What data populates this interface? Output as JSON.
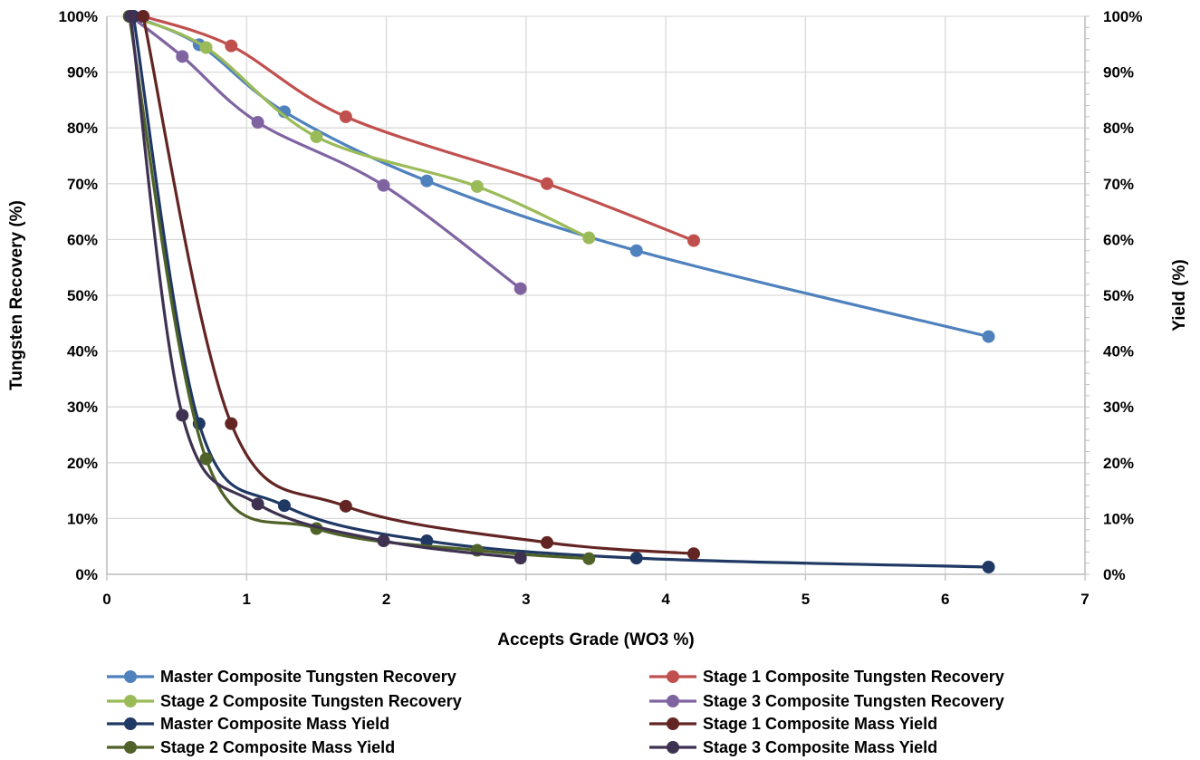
{
  "chart_data": {
    "type": "scatter",
    "title": "",
    "xlabel": "Accepts Grade (WO3 %)",
    "ylabel": "Tungsten Recovery (%)",
    "y2label": "Yield (%)",
    "xlim": [
      0,
      7
    ],
    "ylim": [
      0,
      100
    ],
    "y2lim": [
      0,
      100
    ],
    "x_ticks": [
      "0",
      "1",
      "2",
      "3",
      "4",
      "5",
      "6",
      "7"
    ],
    "y_ticks": [
      "0%",
      "10%",
      "20%",
      "30%",
      "40%",
      "50%",
      "60%",
      "70%",
      "80%",
      "90%",
      "100%"
    ],
    "y2_ticks": [
      "0%",
      "10%",
      "20%",
      "30%",
      "40%",
      "50%",
      "60%",
      "70%",
      "80%",
      "90%",
      "100%"
    ],
    "grid": true,
    "legend_position": "bottom",
    "series": [
      {
        "name": "Master Composite Tungsten Recovery",
        "color": "#4f81bd",
        "x": [
          0.19,
          0.66,
          1.27,
          2.29,
          3.79,
          6.31
        ],
        "y": [
          100,
          94.9,
          82.9,
          70.5,
          58.0,
          42.6
        ]
      },
      {
        "name": "Stage 1 Composite Tungsten Recovery",
        "color": "#c0504d",
        "x": [
          0.26,
          0.89,
          1.71,
          3.15,
          4.2
        ],
        "y": [
          100,
          94.7,
          82.0,
          70.0,
          59.8
        ]
      },
      {
        "name": "Stage 2 Composite Tungsten Recovery",
        "color": "#9bbb59",
        "x": [
          0.16,
          0.71,
          1.5,
          2.65,
          3.45
        ],
        "y": [
          100,
          94.4,
          78.4,
          69.5,
          60.3
        ]
      },
      {
        "name": "Stage 3 Composite Tungsten Recovery",
        "color": "#8064a2",
        "x": [
          0.17,
          0.54,
          1.08,
          1.98,
          2.96
        ],
        "y": [
          100,
          92.8,
          81.0,
          69.7,
          51.2
        ]
      },
      {
        "name": "Master Composite Mass Yield",
        "color": "#1f3864",
        "x": [
          0.19,
          0.66,
          1.27,
          2.29,
          3.79,
          6.31
        ],
        "y": [
          100,
          27.0,
          12.3,
          6.0,
          2.9,
          1.3
        ]
      },
      {
        "name": "Stage 1 Composite Mass Yield",
        "color": "#632523",
        "x": [
          0.26,
          0.89,
          1.71,
          3.15,
          4.2
        ],
        "y": [
          100,
          27.0,
          12.2,
          5.7,
          3.7
        ]
      },
      {
        "name": "Stage 2 Composite Mass Yield",
        "color": "#4f6228",
        "x": [
          0.16,
          0.71,
          1.5,
          2.65,
          3.45
        ],
        "y": [
          100,
          20.7,
          8.2,
          4.3,
          2.8
        ]
      },
      {
        "name": "Stage 3 Composite Mass Yield",
        "color": "#3f3151",
        "x": [
          0.17,
          0.54,
          1.08,
          1.98,
          2.96
        ],
        "y": [
          100,
          28.5,
          12.6,
          6.0,
          2.9
        ]
      }
    ]
  }
}
